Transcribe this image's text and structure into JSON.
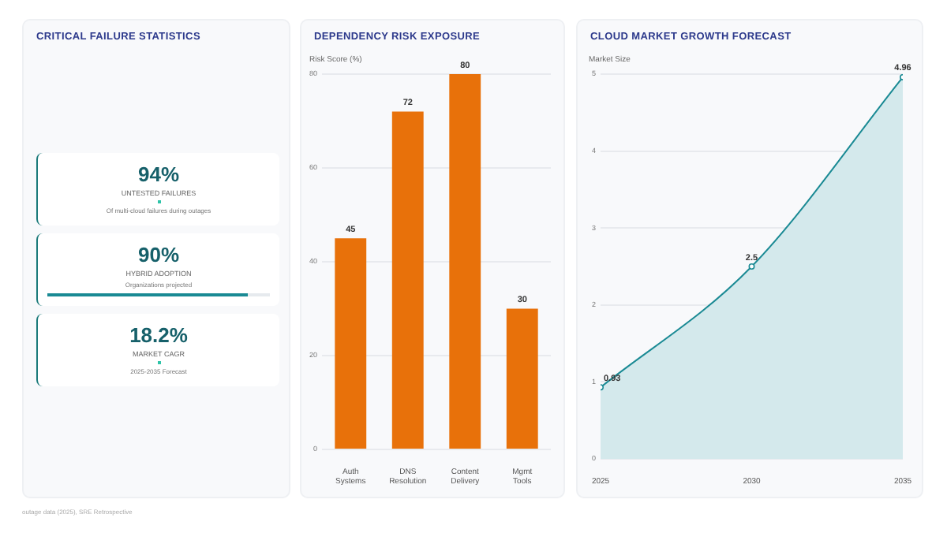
{
  "chart_data": [
    {
      "type": "other",
      "title": "CRITICAL FAILURE STATISTICS",
      "annotations": [
        "94%",
        "UNTESTED FAILURES",
        "Of multi-cloud failures during outages",
        "90%",
        "HYBRID ADOPTION",
        "Organizations projected",
        "18.2%",
        "MARKET CAGR",
        "2025-2035 Forecast"
      ]
    },
    {
      "type": "bar",
      "title": "DEPENDENCY RISK EXPOSURE",
      "ylabel": "Risk Score (%)",
      "categories": [
        "Auth Systems",
        "DNS Resolution",
        "Content Delivery",
        "Mgmt Tools"
      ],
      "values": [
        45,
        72,
        80,
        30
      ],
      "color": "#e8710a",
      "ylim": [
        0,
        80
      ],
      "yticks": [
        0,
        20,
        40,
        60,
        80
      ],
      "grid": "y",
      "data_labels": true
    },
    {
      "type": "area",
      "title": "CLOUD MARKET GROWTH FORECAST",
      "ylabel": "Market Size",
      "x": [
        2025,
        2030,
        2035
      ],
      "values": [
        0.93,
        2.5,
        4.96
      ],
      "color": "#1a8a94",
      "xlim": [
        2025,
        2035
      ],
      "xticks": [
        2025,
        2030,
        2035
      ],
      "ylim": [
        0,
        5
      ],
      "yticks": [
        0,
        1,
        2,
        3,
        4,
        5
      ],
      "grid": "y",
      "marker": "circle",
      "data_labels": true,
      "annotations": [
        "outage data (2025), SRE Retrospective"
      ]
    }
  ]
}
